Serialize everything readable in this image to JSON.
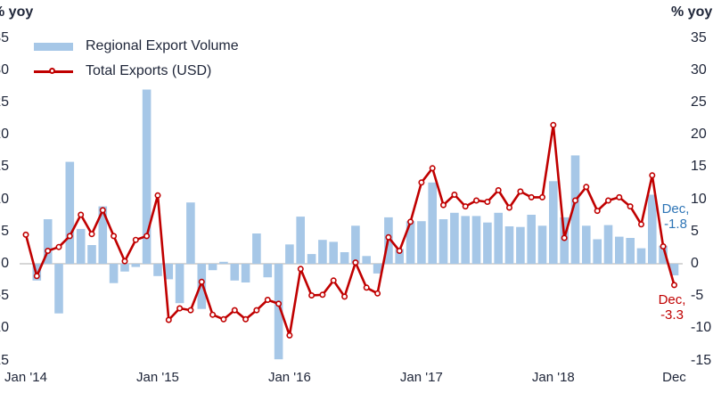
{
  "axes": {
    "left_unit": "% yoy",
    "right_unit": "% yoy"
  },
  "legend": {
    "bar_label": "Regional Export Volume",
    "line_label": "Total Exports (USD)"
  },
  "annotations": {
    "bar_end": {
      "line1": "Dec,",
      "line2": "-1.8"
    },
    "line_end": {
      "line1": "Dec,",
      "line2": "-3.3"
    }
  },
  "chart_data": {
    "type": "combo-bar-line",
    "title": "",
    "xlabel": "",
    "ylabel": "% yoy",
    "ylim": [
      -15,
      35
    ],
    "y_ticks": [
      35,
      30,
      25,
      20,
      15,
      10,
      5,
      0,
      -5,
      -10,
      -15
    ],
    "grid": "zero-line-only",
    "legend_position": "top-left-inside",
    "months": [
      "Jan-14",
      "Feb-14",
      "Mar-14",
      "Apr-14",
      "May-14",
      "Jun-14",
      "Jul-14",
      "Aug-14",
      "Sep-14",
      "Oct-14",
      "Nov-14",
      "Dec-14",
      "Jan-15",
      "Feb-15",
      "Mar-15",
      "Apr-15",
      "May-15",
      "Jun-15",
      "Jul-15",
      "Aug-15",
      "Sep-15",
      "Oct-15",
      "Nov-15",
      "Dec-15",
      "Jan-16",
      "Feb-16",
      "Mar-16",
      "Apr-16",
      "May-16",
      "Jun-16",
      "Jul-16",
      "Aug-16",
      "Sep-16",
      "Oct-16",
      "Nov-16",
      "Dec-16",
      "Jan-17",
      "Feb-17",
      "Mar-17",
      "Apr-17",
      "May-17",
      "Jun-17",
      "Jul-17",
      "Aug-17",
      "Sep-17",
      "Oct-17",
      "Nov-17",
      "Dec-17",
      "Jan-18",
      "Feb-18",
      "Mar-18",
      "Apr-18",
      "May-18",
      "Jun-18",
      "Jul-18",
      "Aug-18",
      "Sep-18",
      "Oct-18",
      "Nov-18",
      "Dec-18"
    ],
    "x_ticks": [
      {
        "label": "Jan '14",
        "month_index": 0
      },
      {
        "label": "Jan '15",
        "month_index": 12
      },
      {
        "label": "Jan '16",
        "month_index": 24
      },
      {
        "label": "Jan '17",
        "month_index": 36
      },
      {
        "label": "Jan '18",
        "month_index": 48
      },
      {
        "label": "Dec",
        "month_index": 59
      }
    ],
    "series": [
      {
        "name": "Regional Export Volume",
        "type": "bar",
        "values": [
          0,
          -2.6,
          6.9,
          -7.7,
          15.8,
          5.4,
          2.9,
          8.9,
          -3.0,
          -1.2,
          -0.5,
          27.0,
          -1.9,
          -2.4,
          -6.1,
          9.5,
          -7.0,
          -1.0,
          0.3,
          -2.6,
          -2.9,
          4.7,
          -2.1,
          -14.8,
          3.0,
          7.3,
          1.5,
          3.7,
          3.4,
          1.8,
          5.9,
          1.2,
          -1.5,
          7.2,
          2.3,
          6.6,
          6.6,
          12.6,
          6.9,
          7.9,
          7.4,
          7.4,
          6.4,
          7.9,
          5.8,
          5.7,
          7.6,
          5.9,
          12.8,
          7.2,
          16.8,
          5.9,
          3.8,
          6.0,
          4.2,
          4.0,
          2.4,
          10.7,
          2.8,
          -1.8
        ]
      },
      {
        "name": "Total Exports (USD)",
        "type": "line",
        "values": [
          4.5,
          -1.9,
          2.0,
          2.6,
          4.3,
          7.6,
          4.6,
          8.3,
          4.3,
          0.4,
          3.7,
          4.3,
          10.6,
          -8.7,
          -6.9,
          -7.2,
          -2.8,
          -7.9,
          -8.6,
          -7.2,
          -8.6,
          -7.2,
          -5.6,
          -6.2,
          -11.1,
          -0.8,
          -4.9,
          -4.8,
          -2.6,
          -5.1,
          0.2,
          -3.7,
          -4.6,
          4.1,
          2.0,
          6.5,
          12.6,
          14.8,
          9.1,
          10.7,
          8.9,
          9.8,
          9.6,
          11.4,
          8.7,
          11.2,
          10.3,
          10.3,
          21.5,
          4.0,
          9.8,
          11.9,
          8.2,
          9.8,
          10.3,
          8.9,
          6.1,
          13.7,
          2.7,
          -3.3
        ]
      }
    ],
    "colors": {
      "bar": "#a6c7e7",
      "line": "#c00000",
      "gridline": "#c9c9c9",
      "text": "#20273a",
      "annotation_blue": "#2e75b6",
      "annotation_red": "#c00000"
    }
  }
}
